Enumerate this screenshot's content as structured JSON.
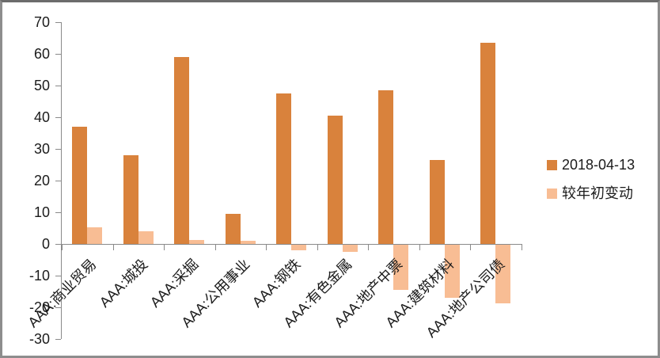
{
  "chart_data": {
    "type": "bar",
    "title": "",
    "xlabel": "",
    "ylabel": "",
    "categories": [
      "AAA:商业贸易",
      "AAA:城投",
      "AAA:采掘",
      "AAA:公用事业",
      "AAA:钢铁",
      "AAA:有色金属",
      "AAA:地产中票",
      "AAA:建筑材料",
      "AAA:地产公司债"
    ],
    "series": [
      {
        "name": "2018-04-13",
        "color": "#D9823C",
        "values": [
          36.9,
          28.0,
          59.0,
          9.6,
          47.5,
          40.6,
          48.5,
          26.5,
          63.5
        ]
      },
      {
        "name": "较年初变动",
        "color": "#F8BD94",
        "values": [
          5.3,
          3.9,
          1.3,
          1.1,
          -1.8,
          -2.2,
          -14.3,
          -16.7,
          -18.5
        ]
      }
    ],
    "ylim": [
      -30,
      70
    ],
    "yticks": [
      70,
      60,
      50,
      40,
      30,
      20,
      10,
      0,
      -10,
      -20,
      -30
    ],
    "grid": false,
    "legend_position": "right",
    "axis_color": "#8a8a8a",
    "text_color": "#1b1b1b"
  },
  "legend": {
    "items": [
      {
        "label": "2018-04-13",
        "color": "#D9823C"
      },
      {
        "label": "较年初变动",
        "color": "#F8BD94"
      }
    ]
  }
}
